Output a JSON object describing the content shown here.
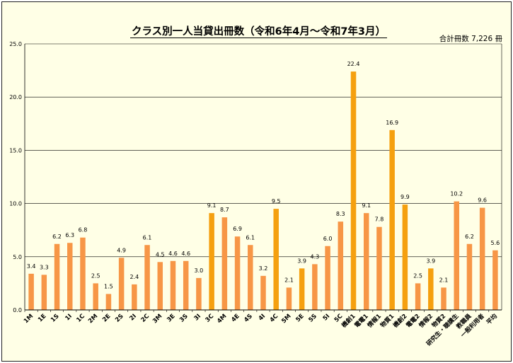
{
  "chart_data": {
    "type": "bar",
    "title": "クラス別一人当貸出冊数（令和6年4月～令和7年3月）",
    "subtitle": "合計冊数 7,226 冊",
    "ylim": [
      0,
      25
    ],
    "yticks": [
      "0.0",
      "5.0",
      "10.0",
      "15.0",
      "20.0",
      "25.0"
    ],
    "grid": true,
    "categories": [
      "1M",
      "1E",
      "1S",
      "1I",
      "1C",
      "2M",
      "2E",
      "2S",
      "2I",
      "2C",
      "3M",
      "3E",
      "3S",
      "3I",
      "3C",
      "4M",
      "4E",
      "4S",
      "4I",
      "4C",
      "5M",
      "5E",
      "5S",
      "5I",
      "5C",
      "機創1",
      "電電1",
      "情報1",
      "物質1",
      "機創2",
      "電電2",
      "情報2",
      "物質2",
      "研究生・聴講生",
      "教職員",
      "一般利用者",
      "平均"
    ],
    "values": [
      3.4,
      3.3,
      6.2,
      6.3,
      6.8,
      2.5,
      1.5,
      4.9,
      2.4,
      6.1,
      4.5,
      4.6,
      4.6,
      3.0,
      9.1,
      8.7,
      6.9,
      6.1,
      3.2,
      9.5,
      2.1,
      3.9,
      4.3,
      6.0,
      8.3,
      22.4,
      9.1,
      7.8,
      16.9,
      9.9,
      2.5,
      3.9,
      2.1,
      10.2,
      6.2,
      9.6,
      5.6
    ],
    "value_labels": [
      "3.4",
      "3.3",
      "6.2",
      "6.3",
      "6.8",
      "2.5",
      "1.5",
      "4.9",
      "2.4",
      "6.1",
      "4.5",
      "4.6",
      "4.6",
      "3.0",
      "9.1",
      "8.7",
      "6.9",
      "6.1",
      "3.2",
      "9.5",
      "2.1",
      "3.9",
      "4.3",
      "6.0",
      "8.3",
      "22.4",
      "9.1",
      "7.8",
      "16.9",
      "9.9",
      "2.5",
      "3.9",
      "2.1",
      "10.2",
      "6.2",
      "9.6",
      "5.6"
    ],
    "bar_colors": [
      "#f79646",
      "#f79646",
      "#f79646",
      "#f79646",
      "#f79646",
      "#f79646",
      "#f79646",
      "#f79646",
      "#f79646",
      "#f79646",
      "#f79646",
      "#f79646",
      "#f79646",
      "#f79646",
      "#f5a00f",
      "#f79646",
      "#f79646",
      "#f79646",
      "#f79646",
      "#f5a00f",
      "#f79646",
      "#f5a00f",
      "#f79646",
      "#f79646",
      "#f79646",
      "#f5a00f",
      "#f79646",
      "#f79646",
      "#f5a00f",
      "#f5a00f",
      "#f79646",
      "#f5a00f",
      "#f79646",
      "#f79646",
      "#f79646",
      "#f79646",
      "#f79646"
    ]
  },
  "colors": {
    "background": "#ffffe6",
    "grid": "#000000"
  }
}
